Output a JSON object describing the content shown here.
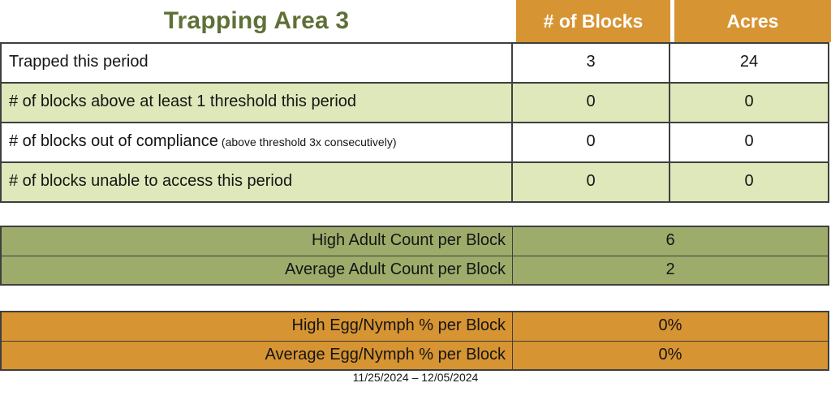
{
  "title": "Trapping Area 3",
  "header": {
    "col_blocks": "# of Blocks",
    "col_acres": "Acres"
  },
  "summary_table": {
    "rows": [
      {
        "label": "Trapped this period",
        "note": "",
        "blocks": "3",
        "acres": "24"
      },
      {
        "label": "# of blocks above at least 1 threshold this period",
        "note": "",
        "blocks": "0",
        "acres": "0"
      },
      {
        "label": "# of blocks out of compliance",
        "note": "(above threshold 3x consecutively)",
        "blocks": "0",
        "acres": "0"
      },
      {
        "label": "# of blocks unable to access this period",
        "note": "",
        "blocks": "0",
        "acres": "0"
      }
    ]
  },
  "adult_counts": {
    "rows": [
      {
        "label": "High Adult Count per Block",
        "value": "6"
      },
      {
        "label": "Average Adult Count per Block",
        "value": "2"
      }
    ]
  },
  "egg_nymph": {
    "rows": [
      {
        "label": "High Egg/Nymph % per Block",
        "value": "0%"
      },
      {
        "label": "Average Egg/Nymph % per Block",
        "value": "0%"
      }
    ]
  },
  "footer": {
    "date_range": "11/25/2024 – 12/05/2024"
  },
  "colors": {
    "orange": "#D79432",
    "light_green": "#DEE8BA",
    "olive": "#9DAC6A",
    "title_green": "#5F7037",
    "border": "#3F3F3F"
  }
}
